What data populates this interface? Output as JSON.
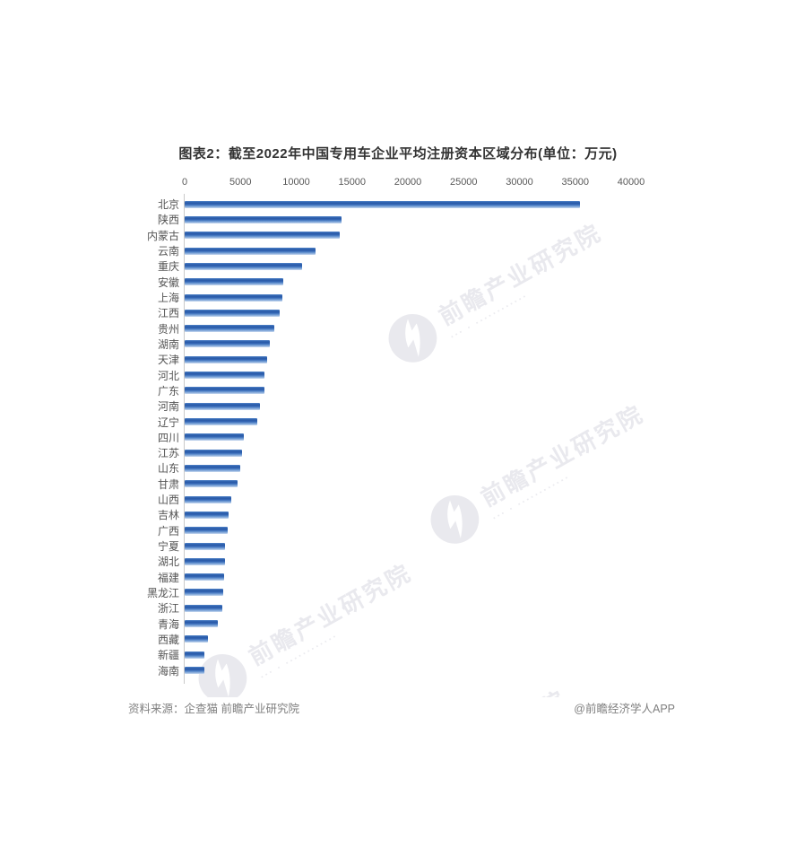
{
  "title": "图表2：截至2022年中国专用车企业平均注册资本区域分布(单位：万元)",
  "chart_data": {
    "type": "bar",
    "orientation": "horizontal",
    "title": "图表2：截至2022年中国专用车企业平均注册资本区域分布(单位：万元)",
    "unit": "万元",
    "categories": [
      "北京",
      "陕西",
      "内蒙古",
      "云南",
      "重庆",
      "安徽",
      "上海",
      "江西",
      "贵州",
      "湖南",
      "天津",
      "河北",
      "广东",
      "河南",
      "辽宁",
      "四川",
      "江苏",
      "山东",
      "甘肃",
      "山西",
      "吉林",
      "广西",
      "宁夏",
      "湖北",
      "福建",
      "黑龙江",
      "浙江",
      "青海",
      "西藏",
      "新疆",
      "海南"
    ],
    "values": [
      35400,
      14050,
      13900,
      11700,
      10500,
      8800,
      8730,
      8500,
      8020,
      7620,
      7380,
      7170,
      7150,
      6740,
      6520,
      5320,
      5140,
      4950,
      4740,
      4170,
      3930,
      3880,
      3620,
      3590,
      3530,
      3460,
      3400,
      3000,
      2110,
      1800,
      1750
    ],
    "xlim": [
      0,
      40000
    ],
    "x_ticks": [
      0,
      5000,
      10000,
      15000,
      20000,
      25000,
      30000,
      35000,
      40000
    ],
    "grid": false,
    "legend": false,
    "bar_color": "#3568b6"
  },
  "footer": {
    "source": "资料来源：企查猫 前瞻产业研究院",
    "credit": "@前瞻经济学人APP"
  },
  "watermark": {
    "text": "前瞻产业研究院",
    "subtext": "▪▪▪ ▪ ▪▪▪▪▪▪▪▪▪▪▪▪",
    "logo": "qianzhan-bird-logo",
    "color": "#e9e9ee"
  },
  "colors": {
    "axis_line": "#c9c9c9",
    "tick_label": "#595959",
    "category_label": "#555555",
    "title_text": "#333333",
    "footer_text": "#7f7f7f"
  }
}
